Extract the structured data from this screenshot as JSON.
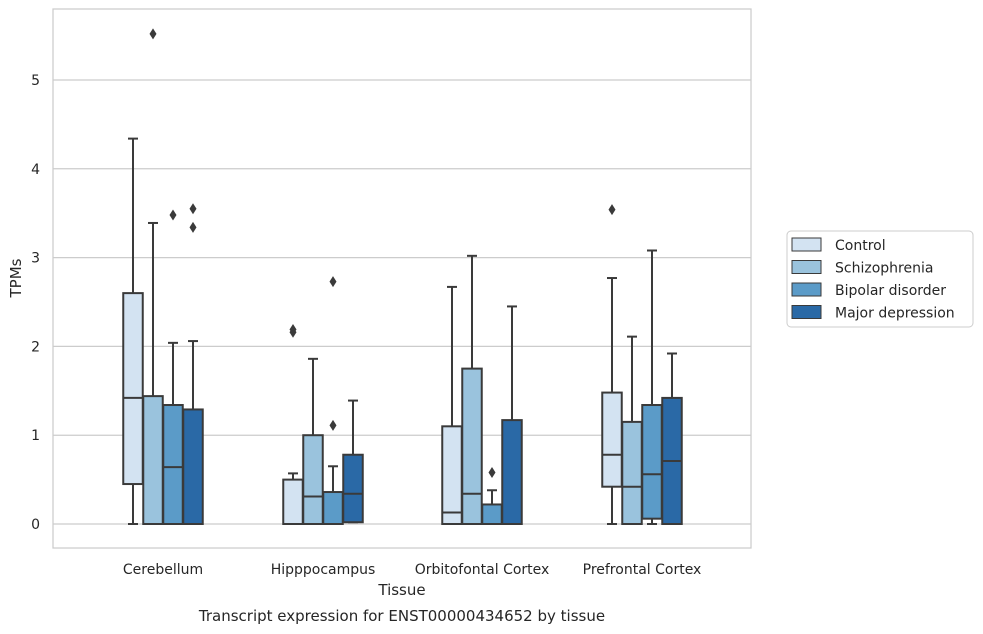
{
  "chart_data": {
    "type": "box",
    "title": "",
    "caption": "Transcript expression for ENST00000434652 by tissue",
    "xlabel": "Tissue",
    "ylabel": "TPMs",
    "ylim": [
      -0.27,
      5.8
    ],
    "yticks": [
      0,
      1,
      2,
      3,
      4,
      5
    ],
    "grid": "horizontal",
    "legend_position": "right",
    "categories": [
      "Cerebellum",
      "Hipppocampus",
      "Orbitofontal Cortex",
      "Prefrontal Cortex"
    ],
    "series": [
      {
        "name": "Control",
        "color": "#d3e3f2",
        "boxes": [
          {
            "whislo": 0.0,
            "q1": 0.45,
            "med": 1.42,
            "q3": 2.6,
            "whishi": 4.34,
            "fliers": []
          },
          {
            "whislo": 0.0,
            "q1": 0.0,
            "med": 0.0,
            "q3": 0.5,
            "whishi": 0.57,
            "fliers": [
              2.16,
              2.19
            ]
          },
          {
            "whislo": 0.0,
            "q1": 0.0,
            "med": 0.13,
            "q3": 1.1,
            "whishi": 2.67,
            "fliers": []
          },
          {
            "whislo": 0.0,
            "q1": 0.42,
            "med": 0.78,
            "q3": 1.48,
            "whishi": 2.77,
            "fliers": [
              3.54
            ]
          }
        ]
      },
      {
        "name": "Schizophrenia",
        "color": "#9ac3dd",
        "boxes": [
          {
            "whislo": 0.0,
            "q1": 0.0,
            "med": 0.0,
            "q3": 1.44,
            "whishi": 3.39,
            "fliers": [
              5.52
            ]
          },
          {
            "whislo": 0.0,
            "q1": 0.0,
            "med": 0.31,
            "q3": 1.0,
            "whishi": 1.86,
            "fliers": []
          },
          {
            "whislo": 0.0,
            "q1": 0.0,
            "med": 0.34,
            "q3": 1.75,
            "whishi": 3.02,
            "fliers": []
          },
          {
            "whislo": 0.0,
            "q1": 0.0,
            "med": 0.42,
            "q3": 1.15,
            "whishi": 2.11,
            "fliers": []
          }
        ]
      },
      {
        "name": "Bipolar disorder",
        "color": "#5b9bc8",
        "boxes": [
          {
            "whislo": 0.0,
            "q1": 0.0,
            "med": 0.64,
            "q3": 1.34,
            "whishi": 2.04,
            "fliers": [
              3.48
            ]
          },
          {
            "whislo": 0.0,
            "q1": 0.0,
            "med": 0.0,
            "q3": 0.36,
            "whishi": 0.65,
            "fliers": [
              1.11,
              2.73
            ]
          },
          {
            "whislo": 0.0,
            "q1": 0.0,
            "med": 0.0,
            "q3": 0.22,
            "whishi": 0.38,
            "fliers": [
              0.58
            ]
          },
          {
            "whislo": 0.0,
            "q1": 0.06,
            "med": 0.56,
            "q3": 1.34,
            "whishi": 3.08,
            "fliers": []
          }
        ]
      },
      {
        "name": "Major depression",
        "color": "#2a69a6",
        "boxes": [
          {
            "whislo": 0.0,
            "q1": 0.0,
            "med": 0.0,
            "q3": 1.29,
            "whishi": 2.06,
            "fliers": [
              3.34,
              3.55
            ]
          },
          {
            "whislo": 0.02,
            "q1": 0.02,
            "med": 0.34,
            "q3": 0.78,
            "whishi": 1.39,
            "fliers": []
          },
          {
            "whislo": 0.0,
            "q1": 0.0,
            "med": 0.0,
            "q3": 1.17,
            "whishi": 2.45,
            "fliers": []
          },
          {
            "whislo": 0.0,
            "q1": 0.0,
            "med": 0.71,
            "q3": 1.42,
            "whishi": 1.92,
            "fliers": []
          }
        ]
      }
    ]
  }
}
